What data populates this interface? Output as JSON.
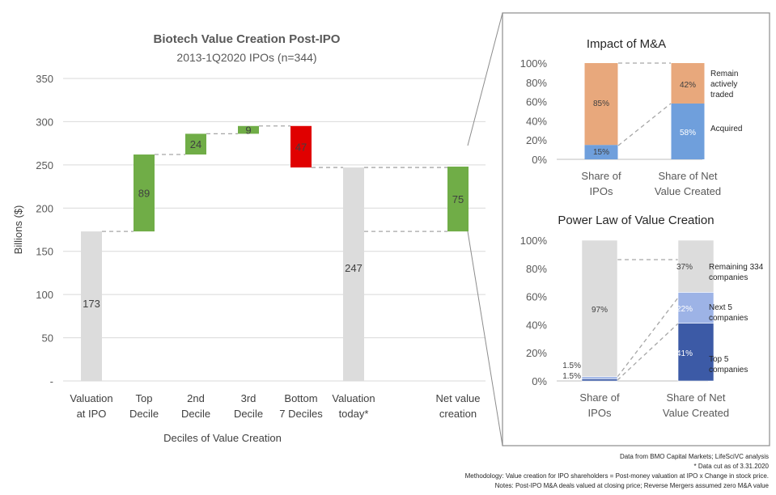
{
  "colors": {
    "gray_bar": "#dcdcdc",
    "green_bar": "#70ad47",
    "red_bar": "#e00000",
    "orange_bar": "#e8a87c",
    "blue_bar": "#6f9fdc",
    "light_blue_bar": "#9db3e6",
    "dark_blue_bar": "#3c5aa6",
    "text": "#404040",
    "axis_text": "#595959",
    "grid": "#d9d9d9",
    "connector": "#a6a6a6",
    "panel_border": "#8c8c8c"
  },
  "chart_data": [
    {
      "type": "bar",
      "subtype": "waterfall",
      "title": "Biotech Value Creation Post-IPO",
      "subtitle": "2013-1Q2020 IPOs (n=344)",
      "xlabel": "Deciles of Value Creation",
      "ylabel": "Billions ($)",
      "ylim": [
        0,
        350
      ],
      "yticks": [
        0,
        50,
        100,
        150,
        200,
        250,
        300,
        350
      ],
      "ytick_labels": [
        "-",
        "50",
        "100",
        "150",
        "200",
        "250",
        "300",
        "350"
      ],
      "categories": [
        "Valuation at IPO",
        "Top Decile",
        "2nd Decile",
        "3rd Decile",
        "Bottom 7 Deciles",
        "Valuation today*",
        "Net value creation"
      ],
      "category_lines": [
        [
          "Valuation",
          "at IPO"
        ],
        [
          "Top",
          "Decile"
        ],
        [
          "2nd",
          "Decile"
        ],
        [
          "3rd",
          "Decile"
        ],
        [
          "Bottom",
          "7 Deciles"
        ],
        [
          "Valuation",
          "today*"
        ],
        [
          "Net value",
          "creation"
        ]
      ],
      "bars": [
        {
          "base": 0,
          "top": 173,
          "label": "173",
          "color": "gray"
        },
        {
          "base": 173,
          "top": 262,
          "label": "89",
          "color": "green"
        },
        {
          "base": 262,
          "top": 286,
          "label": "24",
          "color": "green"
        },
        {
          "base": 286,
          "top": 295,
          "label": "9",
          "color": "green"
        },
        {
          "base": 247,
          "top": 295,
          "label": "47",
          "color": "red"
        },
        {
          "base": 0,
          "top": 247,
          "label": "247",
          "color": "gray"
        },
        {
          "base": 173,
          "top": 248,
          "label": "75",
          "color": "green"
        }
      ]
    },
    {
      "type": "bar",
      "subtype": "stacked_percent",
      "title": "Impact of M&A",
      "ylim": [
        0,
        100
      ],
      "yticks": [
        "0%",
        "20%",
        "40%",
        "60%",
        "80%",
        "100%"
      ],
      "categories": [
        "Share of IPOs",
        "Share of Net Value Created"
      ],
      "category_lines": [
        [
          "Share of",
          "IPOs"
        ],
        [
          "Share of Net",
          "Value Created"
        ]
      ],
      "series": [
        {
          "name": "Acquired",
          "values": [
            15,
            58
          ],
          "labels": [
            "15%",
            "58%"
          ]
        },
        {
          "name": "Remain actively traded",
          "values": [
            85,
            42
          ],
          "labels": [
            "85%",
            "42%"
          ]
        }
      ],
      "legend": [
        [
          "Remain",
          "actively",
          "traded"
        ],
        [
          "Acquired"
        ]
      ]
    },
    {
      "type": "bar",
      "subtype": "stacked_percent",
      "title": "Power Law of Value Creation",
      "ylim": [
        0,
        100
      ],
      "yticks": [
        "0%",
        "20%",
        "40%",
        "60%",
        "80%",
        "100%"
      ],
      "categories": [
        "Share of IPOs",
        "Share of Net Value Created"
      ],
      "category_lines": [
        [
          "Share of",
          "IPOs"
        ],
        [
          "Share of Net",
          "Value Created"
        ]
      ],
      "series": [
        {
          "name": "Top 5 companies",
          "values": [
            1.5,
            41
          ],
          "labels": [
            "1.5%",
            "41%"
          ]
        },
        {
          "name": "Next 5 companies",
          "values": [
            1.5,
            22
          ],
          "labels": [
            "1.5%",
            "22%"
          ]
        },
        {
          "name": "Remaining 334 companies",
          "values": [
            97,
            37
          ],
          "labels": [
            "97%",
            "37%"
          ]
        }
      ],
      "legend": [
        [
          "Remaining 334",
          "companies"
        ],
        [
          "Next 5",
          "companies"
        ],
        [
          "Top 5",
          "companies"
        ]
      ]
    }
  ],
  "footnotes": [
    "Data from BMO Capital Markets; LifeSciVC analysis",
    "* Data cut as of 3.31.2020",
    "Methodology: Value creation for IPO shareholders = Post-money valuation at IPO x Change in stock price.",
    "Notes: Post-IPO M&A deals valued at closing price; Reverse Mergers assumed zero M&A value"
  ]
}
